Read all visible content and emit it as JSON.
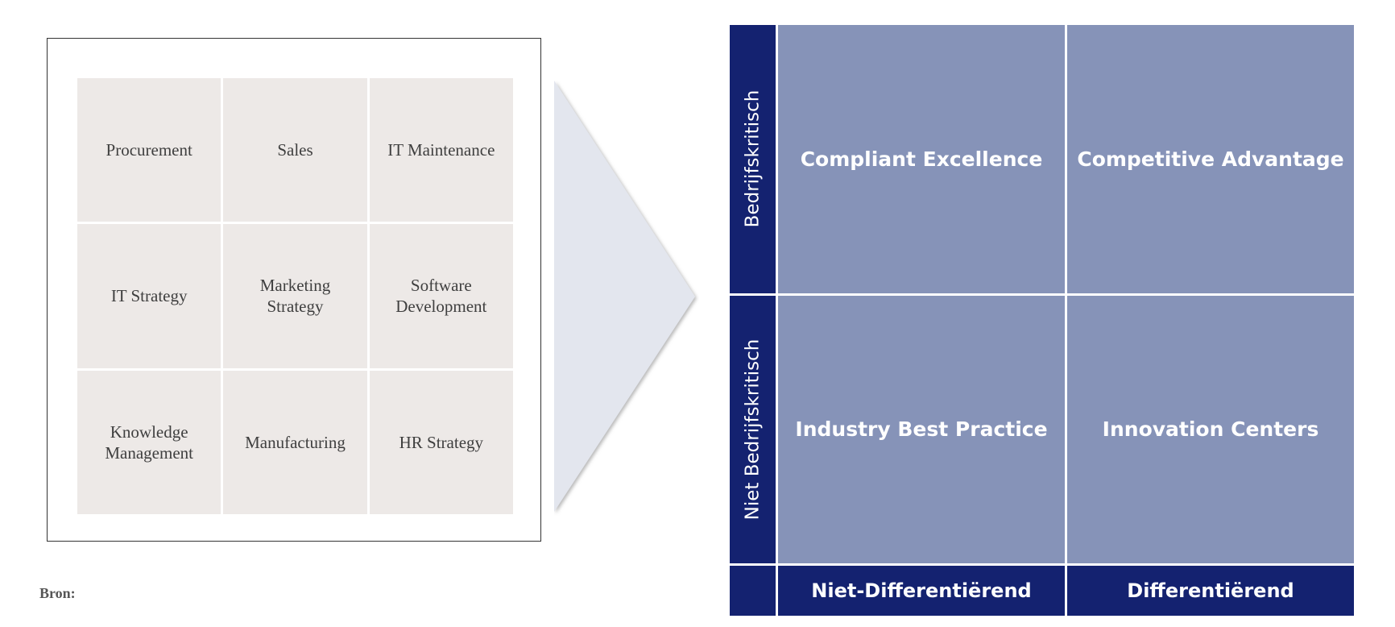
{
  "left_panel": {
    "cells": [
      "Procurement",
      "Sales",
      "IT Maintenance",
      "IT Strategy",
      "Marketing\nStrategy",
      "Software\nDevelopment",
      "Knowledge\nManagement",
      "Manufacturing",
      "HR Strategy"
    ]
  },
  "source_label": "Bron:",
  "matrix": {
    "y_axis": [
      "Bedrijfskritisch",
      "Niet Bedrijfskritisch"
    ],
    "quadrants": [
      "Compliant Excellence",
      "Competitive Advantage",
      "Industry Best Practice",
      "Innovation Centers"
    ],
    "x_axis": [
      "Niet-Differentiërend",
      "Differentiërend"
    ]
  },
  "colors": {
    "axis_navy": "#142270",
    "quadrant_blue": "#8693b8",
    "cell_gray": "#ede9e7",
    "arrow_fill": "#e3e6ee"
  }
}
